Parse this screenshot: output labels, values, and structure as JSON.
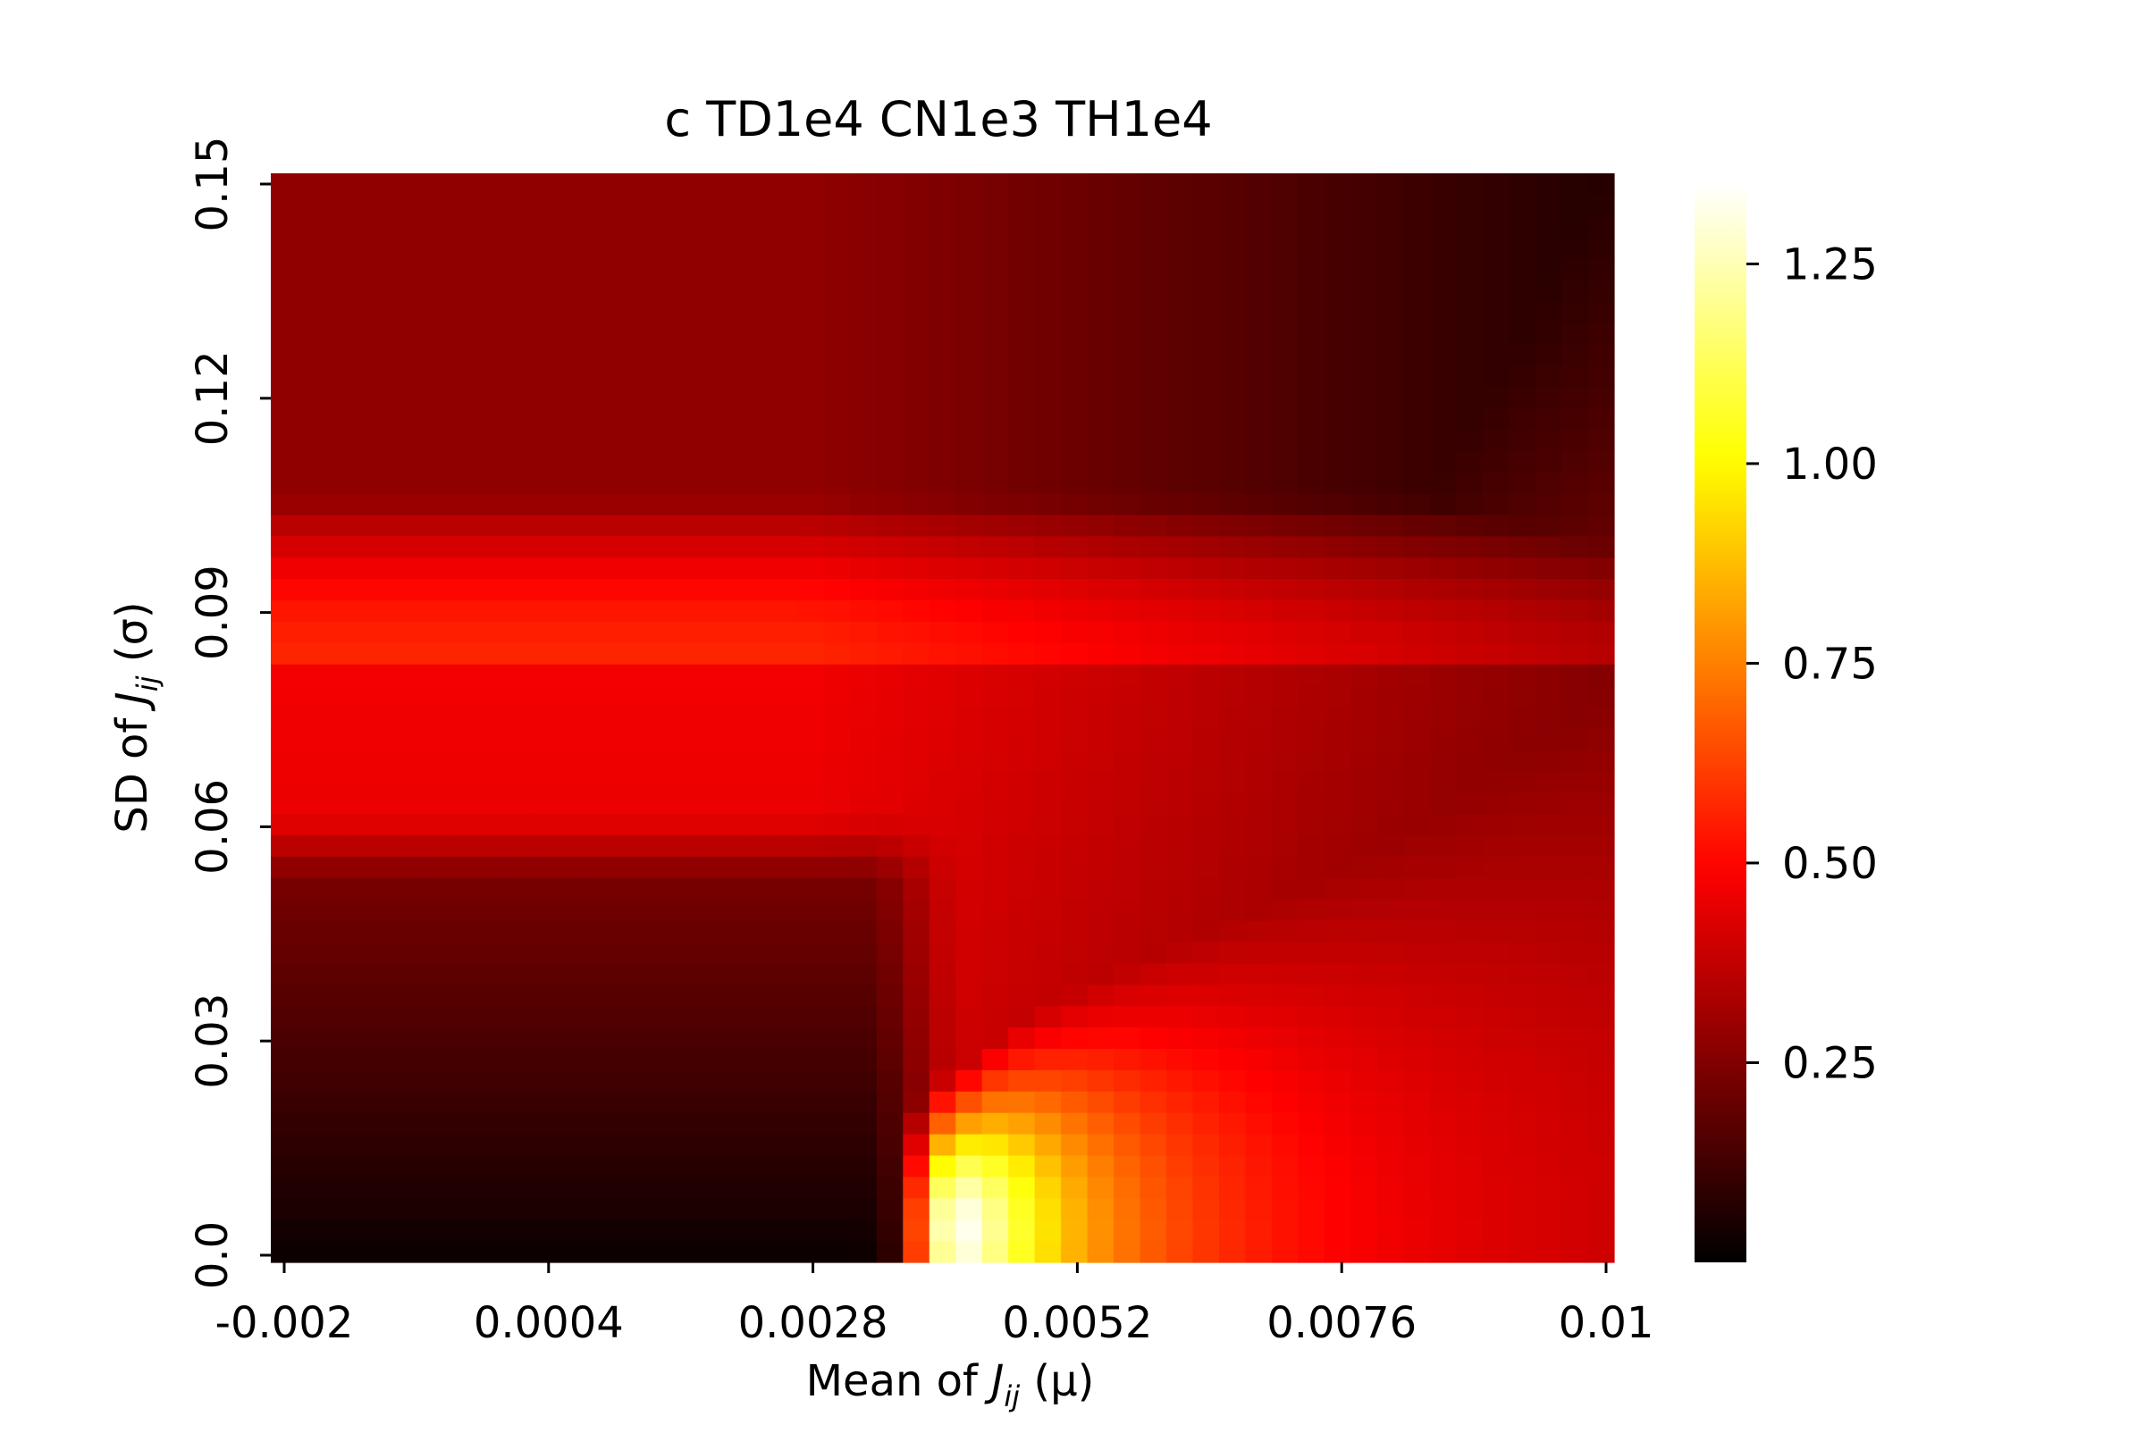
{
  "chart_data": {
    "type": "heatmap",
    "title": "c TD1e4 CN1e3 TH1e4",
    "xlabel": {
      "prefix": "Mean of ",
      "symbol": "J",
      "subscript": "ij",
      "suffix": " (μ)"
    },
    "ylabel": {
      "prefix": "SD of ",
      "symbol": "J",
      "subscript": "ij",
      "suffix": " (σ)"
    },
    "colormap": "hot",
    "colorbar": {
      "vmin": 0.0,
      "vmax": 1.35,
      "ticks": [
        0.25,
        0.5,
        0.75,
        1.0,
        1.25
      ],
      "tick_labels": [
        "0.25",
        "0.50",
        "0.75",
        "1.00",
        "1.25"
      ]
    },
    "x": {
      "min": -0.002,
      "max": 0.01,
      "ticks": [
        -0.002,
        0.0004,
        0.0028,
        0.0052,
        0.0076,
        0.01
      ],
      "tick_labels": [
        "-0.002",
        "0.0004",
        "0.0028",
        "0.0052",
        "0.0076",
        "0.01"
      ],
      "cells": 51
    },
    "y": {
      "min": 0.0,
      "max": 0.15,
      "ticks": [
        0.0,
        0.03,
        0.06,
        0.09,
        0.12,
        0.15
      ],
      "tick_labels": [
        "0.0",
        "0.03",
        "0.06",
        "0.09",
        "0.12",
        "0.15"
      ],
      "cells": 51
    },
    "grid": false,
    "legend": "none",
    "value_profile": {
      "description": "estimated cell values; peak ~1.35 near mu=0.0045, sigma~0.005",
      "peak": {
        "x": 0.0045,
        "y": 0.005,
        "value": 1.35
      },
      "low_region": {
        "x_max": 0.0035,
        "y_max": 0.06,
        "value": 0.0
      },
      "mid_band": {
        "y": 0.08,
        "value": 0.45
      },
      "top_edge": {
        "y": 0.15,
        "value": 0.28
      },
      "right_edge": {
        "x": 0.01,
        "value": 0.22
      }
    }
  }
}
